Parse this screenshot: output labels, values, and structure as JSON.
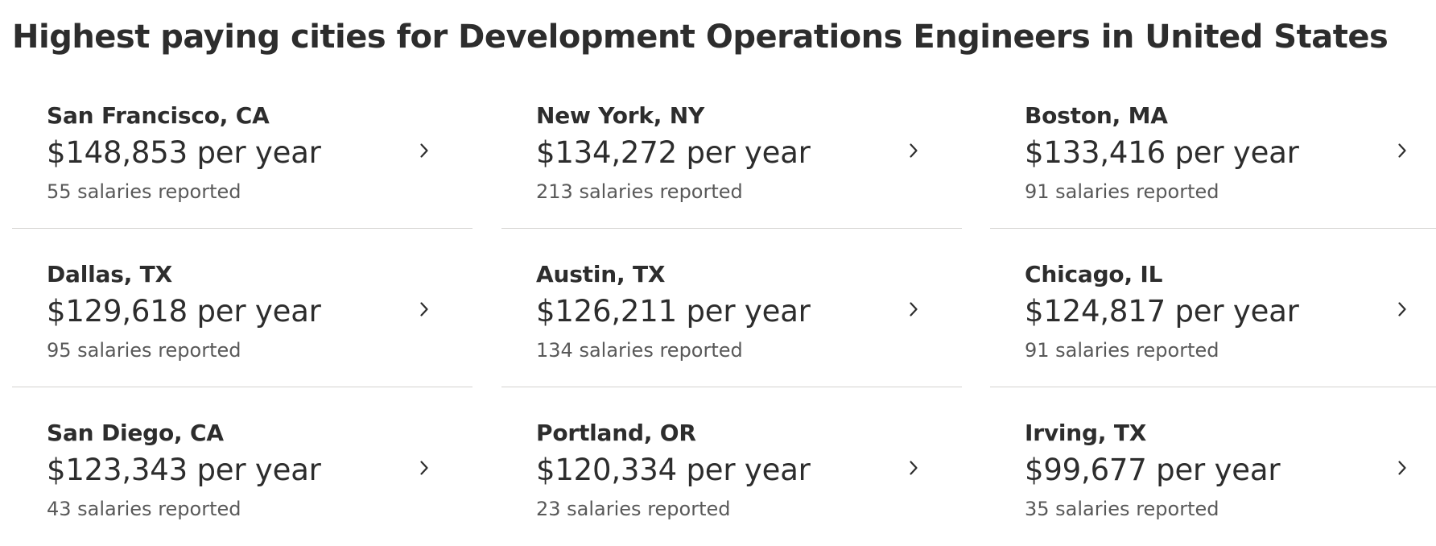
{
  "page": {
    "title": "Highest paying cities for Development Operations Engineers in United States"
  },
  "icons": {
    "chevron": "chevron-right-icon"
  },
  "colors": {
    "text_primary": "#2d2d2d",
    "text_secondary": "#595959",
    "divider": "#d4d2d0"
  },
  "cities": [
    {
      "name": "San Francisco, CA",
      "salary": "$148,853 per year",
      "reported": "55 salaries reported"
    },
    {
      "name": "New York, NY",
      "salary": "$134,272 per year",
      "reported": "213 salaries reported"
    },
    {
      "name": "Boston, MA",
      "salary": "$133,416 per year",
      "reported": "91 salaries reported"
    },
    {
      "name": "Dallas, TX",
      "salary": "$129,618 per year",
      "reported": "95 salaries reported"
    },
    {
      "name": "Austin, TX",
      "salary": "$126,211 per year",
      "reported": "134 salaries reported"
    },
    {
      "name": "Chicago, IL",
      "salary": "$124,817 per year",
      "reported": "91 salaries reported"
    },
    {
      "name": "San Diego, CA",
      "salary": "$123,343 per year",
      "reported": "43 salaries reported"
    },
    {
      "name": "Portland, OR",
      "salary": "$120,334 per year",
      "reported": "23 salaries reported"
    },
    {
      "name": "Irving, TX",
      "salary": "$99,677 per year",
      "reported": "35 salaries reported"
    }
  ]
}
